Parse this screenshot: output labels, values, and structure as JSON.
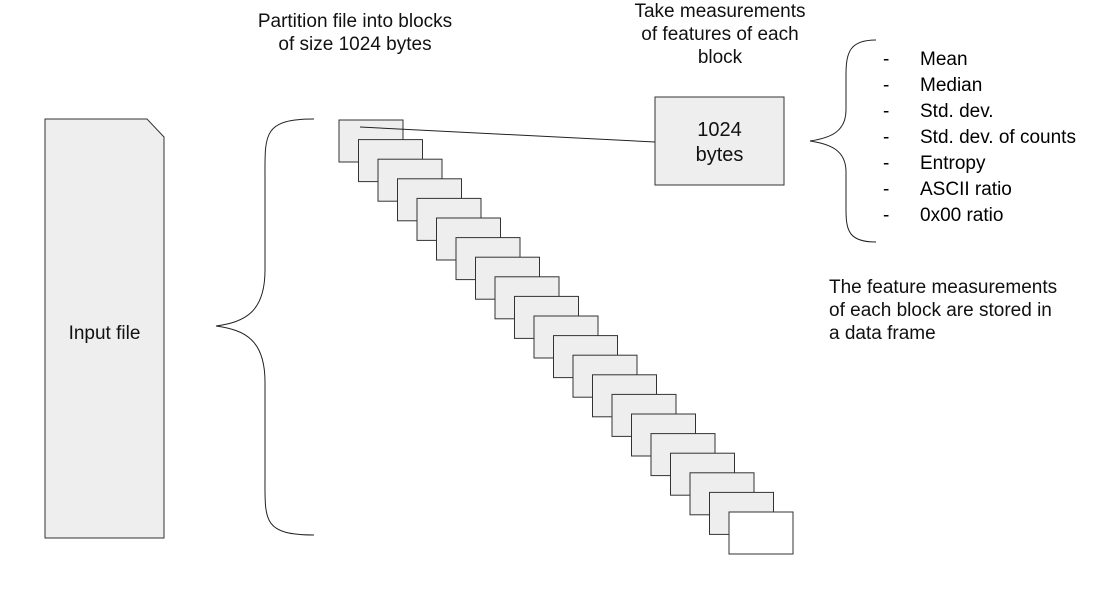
{
  "input_file": {
    "label": "Input file"
  },
  "partition_text": [
    "Partition file into blocks",
    "of size 1024 bytes"
  ],
  "measure_text": [
    "Take measurements",
    "of features of each",
    "block"
  ],
  "block_detail": [
    "1024",
    "bytes"
  ],
  "features": [
    {
      "dash": "-",
      "label": "Mean"
    },
    {
      "dash": "-",
      "label": "Median"
    },
    {
      "dash": "-",
      "label": "Std. dev."
    },
    {
      "dash": "-",
      "label": "Std. dev. of counts"
    },
    {
      "dash": "-",
      "label": "Entropy"
    },
    {
      "dash": "-",
      "label": "ASCII ratio"
    },
    {
      "dash": "-",
      "label": "0x00 ratio"
    }
  ],
  "storage_text": [
    "The feature measurements",
    "of each block are stored in",
    "a data frame"
  ],
  "block_count": 21,
  "colors": {
    "box_fill": "#eeeeee",
    "stroke": "#333333"
  }
}
